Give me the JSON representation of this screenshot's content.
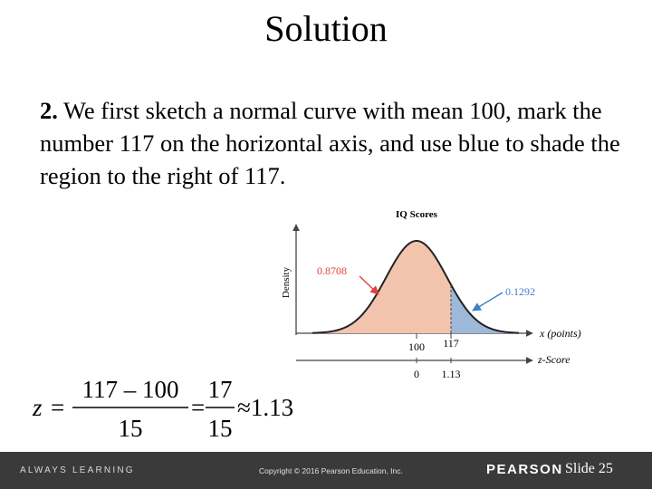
{
  "slide": {
    "title": "Solution",
    "step_number": "2.",
    "paragraph": " We first sketch a normal curve with mean 100, mark the number 117 on the horizontal axis, and use blue to shade the region to the right of 117."
  },
  "figure": {
    "title": "IQ Scores",
    "ylabel": "Density",
    "left_area_label": "0.8708",
    "right_area_label": "0.1292",
    "x_axis_label": "x (points)",
    "z_axis_label": "z-Score",
    "x_ticks": [
      "100",
      "117"
    ],
    "z_ticks": [
      "0",
      "1.13"
    ],
    "colors": {
      "left_fill": "#f2c4ad",
      "right_fill": "#9db8d9",
      "arrow_red": "#e0413a",
      "arrow_blue": "#3f7fc6",
      "axis": "#444444"
    }
  },
  "chart_data": {
    "type": "area",
    "title": "IQ Scores",
    "ylabel": "Density",
    "xlabel": "x (points)",
    "secondary_xlabel": "z-Score",
    "mean": 100,
    "x_mark": 117,
    "z_mark": 1.13,
    "areas": [
      {
        "name": "left of 117",
        "value": 0.8708
      },
      {
        "name": "right of 117",
        "value": 0.1292
      }
    ]
  },
  "formula": {
    "z": "z",
    "eq": "=",
    "num1": "117 – 100",
    "den1": "15",
    "num2": "17",
    "den2": "15",
    "approx": "≈1.13"
  },
  "footer": {
    "left": "ALWAYS LEARNING",
    "copyright": "Copyright © 2016 Pearson Education, Inc.",
    "brand": "PEARSON",
    "slide_label": "Slide 25"
  }
}
